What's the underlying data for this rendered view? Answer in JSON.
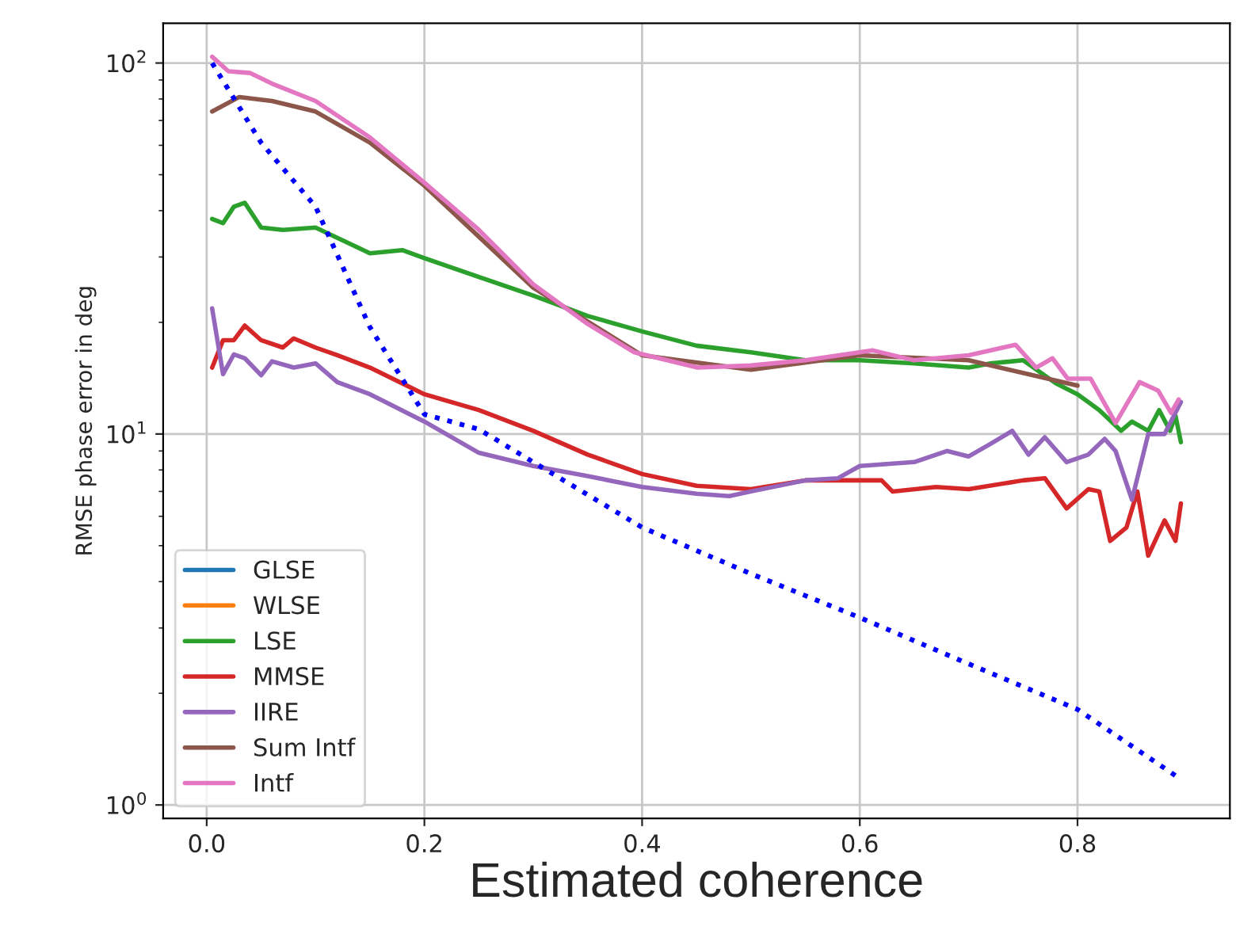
{
  "chart_data": {
    "type": "line",
    "xlabel": "Estimated coherence",
    "ylabel": "RMSE phase error in deg",
    "log": "y",
    "grid": true,
    "legend": "bottom left",
    "marker": "none",
    "xlim": [
      -0.04,
      0.94
    ],
    "xticks": [
      {
        "value": 0,
        "label": "0.0"
      },
      0.2,
      0.4,
      0.6,
      0.8
    ],
    "ylim": [
      0.92,
      128
    ],
    "yticks": [
      {
        "value": 1,
        "label": "10$^{0}$"
      },
      {
        "value": 10,
        "label": "10$^{1}$"
      },
      {
        "value": 100,
        "label": "10$^{2}$"
      }
    ],
    "series": [
      {
        "name": "GLSE",
        "color": "#1f77b4"
      },
      {
        "name": "WLSE",
        "color": "#ff7f0e"
      },
      {
        "name": "LSE",
        "color": "#2ca02c",
        "x": [
          0.005,
          0.015,
          0.025,
          0.035,
          0.05,
          0.07,
          0.1,
          0.12,
          0.15,
          0.18,
          0.2,
          0.25,
          0.3,
          0.35,
          0.4,
          0.45,
          0.5,
          0.55,
          0.6,
          0.65,
          0.7,
          0.72,
          0.75,
          0.78,
          0.8,
          0.82,
          0.84,
          0.85,
          0.865,
          0.875,
          0.885,
          0.89,
          0.895
        ],
        "values": [
          38,
          37,
          41,
          42,
          36,
          35.5,
          36,
          33.8,
          30.7,
          31.3,
          29.8,
          26.5,
          23.6,
          20.8,
          18.9,
          17.3,
          16.6,
          15.8,
          15.8,
          15.5,
          15.1,
          15.5,
          15.8,
          13.7,
          12.8,
          11.6,
          10.2,
          10.8,
          10.2,
          11.6,
          10.2,
          11.2,
          9.5
        ]
      },
      {
        "name": "MMSE",
        "color": "#d62728",
        "x": [
          0.005,
          0.015,
          0.025,
          0.035,
          0.05,
          0.07,
          0.08,
          0.1,
          0.12,
          0.15,
          0.2,
          0.25,
          0.3,
          0.35,
          0.4,
          0.45,
          0.5,
          0.55,
          0.6,
          0.62,
          0.63,
          0.67,
          0.7,
          0.75,
          0.77,
          0.79,
          0.81,
          0.82,
          0.83,
          0.845,
          0.855,
          0.865,
          0.88,
          0.89,
          0.895
        ],
        "values": [
          15.1,
          17.9,
          17.9,
          19.6,
          17.9,
          17.1,
          18.1,
          17.1,
          16.3,
          15.1,
          12.8,
          11.6,
          10.2,
          8.8,
          7.8,
          7.25,
          7.1,
          7.5,
          7.5,
          7.5,
          7.0,
          7.2,
          7.1,
          7.5,
          7.6,
          6.3,
          7.1,
          7.0,
          5.15,
          5.6,
          7.0,
          4.7,
          5.85,
          5.15,
          6.5
        ]
      },
      {
        "name": "IIRE",
        "color": "#9467bd",
        "x": [
          0.005,
          0.015,
          0.025,
          0.035,
          0.05,
          0.06,
          0.08,
          0.1,
          0.12,
          0.15,
          0.2,
          0.25,
          0.3,
          0.35,
          0.4,
          0.45,
          0.48,
          0.5,
          0.55,
          0.58,
          0.6,
          0.65,
          0.68,
          0.7,
          0.72,
          0.74,
          0.755,
          0.77,
          0.79,
          0.81,
          0.825,
          0.835,
          0.85,
          0.865,
          0.88,
          0.895
        ],
        "values": [
          21.8,
          14.5,
          16.4,
          16.0,
          14.4,
          15.7,
          15.1,
          15.5,
          13.8,
          12.8,
          10.8,
          8.9,
          8.2,
          7.7,
          7.2,
          6.9,
          6.8,
          7.0,
          7.5,
          7.6,
          8.2,
          8.4,
          9.0,
          8.7,
          9.4,
          10.2,
          8.8,
          9.8,
          8.4,
          8.8,
          9.7,
          9.0,
          6.65,
          10.0,
          10.0,
          12.2
        ]
      },
      {
        "name": "Sum Intf",
        "color": "#8c564b",
        "x": [
          0.005,
          0.03,
          0.06,
          0.1,
          0.15,
          0.2,
          0.3,
          0.4,
          0.5,
          0.6,
          0.7,
          0.8
        ],
        "values": [
          74,
          81,
          79,
          74,
          61,
          46.7,
          24.8,
          16.3,
          14.9,
          16.3,
          15.8,
          13.5
        ]
      },
      {
        "name": "Intf",
        "color": "#e377c2",
        "x": [
          0.005,
          0.02,
          0.04,
          0.06,
          0.1,
          0.15,
          0.2,
          0.25,
          0.3,
          0.35,
          0.393,
          0.451,
          0.5,
          0.55,
          0.612,
          0.65,
          0.7,
          0.743,
          0.762,
          0.777,
          0.791,
          0.812,
          0.835,
          0.857,
          0.874,
          0.886,
          0.893
        ],
        "values": [
          104,
          95,
          94,
          88,
          79,
          63,
          47.6,
          35.5,
          25.3,
          19.8,
          16.6,
          15.1,
          15.3,
          15.8,
          16.8,
          15.8,
          16.3,
          17.4,
          15.1,
          16.0,
          14.1,
          14.1,
          10.7,
          13.8,
          13.1,
          11.4,
          12.4
        ]
      },
      {
        "color": "#0000ff",
        "line_style": "dotted",
        "x": [
          0.005,
          0.05,
          0.1,
          0.15,
          0.2,
          0.25,
          0.3,
          0.4,
          0.5,
          0.6,
          0.7,
          0.8,
          0.89
        ],
        "values": [
          100,
          61,
          41,
          19.4,
          11.3,
          10.3,
          8.4,
          5.6,
          4.2,
          3.2,
          2.4,
          1.81,
          1.2
        ]
      }
    ]
  }
}
